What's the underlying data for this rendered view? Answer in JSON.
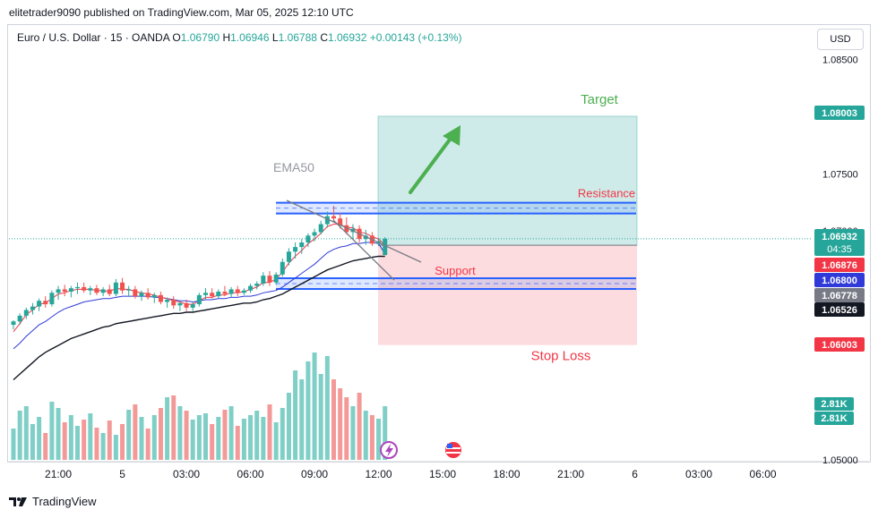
{
  "header": {
    "publish_line": "elitetrader9090 published on TradingView.com, Mar 05, 2025 12:10 UTC"
  },
  "legend": {
    "symbol": "Euro / U.S. Dollar · 15 · OANDA",
    "o_label": "O",
    "o": "1.06790",
    "h_label": "H",
    "h": "1.06946",
    "l_label": "L",
    "l": "1.06788",
    "c_label": "C",
    "c": "1.06932",
    "change": "+0.00143 (+0.13%)"
  },
  "currency_button": "USD",
  "footer": {
    "brand": "TradingView"
  },
  "colors": {
    "up": "#26a69a",
    "down": "#ef5350",
    "target_zone": "#26a69a",
    "stop_zone": "#f7525f",
    "level_line": "#2962ff",
    "ema_fast": "#f23645",
    "ema_mid": "#2f3ad8",
    "ema_slow": "#131722"
  },
  "chart_data": {
    "type": "candlestick",
    "symbol": "EURUSD",
    "timeframe": "15",
    "ylim": [
      1.05,
      1.0855
    ],
    "y_ticks": [
      "1.08500",
      "1.07500",
      "1.07000",
      "1.05000"
    ],
    "x_ticks": [
      "21:00",
      "5",
      "03:00",
      "06:00",
      "09:00",
      "12:00",
      "15:00",
      "18:00",
      "21:00",
      "6",
      "03:00",
      "06:00"
    ],
    "x_tick_bars": [
      7,
      17,
      27,
      37,
      47,
      57,
      67,
      77,
      87,
      97,
      107,
      117
    ],
    "bars_visible": 59,
    "candles": [
      [
        1.0618,
        1.0622,
        1.0614,
        1.0621
      ],
      [
        1.0621,
        1.0628,
        1.0618,
        1.0626
      ],
      [
        1.0626,
        1.0633,
        1.0623,
        1.0631
      ],
      [
        1.0631,
        1.0637,
        1.0627,
        1.0634
      ],
      [
        1.0634,
        1.0641,
        1.063,
        1.0639
      ],
      [
        1.0639,
        1.0643,
        1.0633,
        1.0636
      ],
      [
        1.0636,
        1.0648,
        1.0634,
        1.0646
      ],
      [
        1.0646,
        1.0652,
        1.064,
        1.0649
      ],
      [
        1.0649,
        1.0653,
        1.0643,
        1.0647
      ],
      [
        1.0647,
        1.0652,
        1.0642,
        1.065
      ],
      [
        1.065,
        1.0655,
        1.0645,
        1.0651
      ],
      [
        1.0651,
        1.0655,
        1.0646,
        1.0648
      ],
      [
        1.0648,
        1.0652,
        1.0644,
        1.065
      ],
      [
        1.065,
        1.0653,
        1.0644,
        1.0646
      ],
      [
        1.0646,
        1.0651,
        1.0643,
        1.0649
      ],
      [
        1.0649,
        1.0653,
        1.0643,
        1.0645
      ],
      [
        1.0645,
        1.0658,
        1.0643,
        1.0655
      ],
      [
        1.0655,
        1.0659,
        1.0645,
        1.0648
      ],
      [
        1.0648,
        1.0652,
        1.0643,
        1.0649
      ],
      [
        1.0649,
        1.0652,
        1.0641,
        1.0643
      ],
      [
        1.0643,
        1.0648,
        1.0639,
        1.0646
      ],
      [
        1.0646,
        1.065,
        1.064,
        1.0642
      ],
      [
        1.0642,
        1.0646,
        1.0637,
        1.0644
      ],
      [
        1.0644,
        1.0647,
        1.0636,
        1.0638
      ],
      [
        1.0638,
        1.0642,
        1.0633,
        1.064
      ],
      [
        1.064,
        1.0643,
        1.0632,
        1.0635
      ],
      [
        1.0635,
        1.0639,
        1.063,
        1.0637
      ],
      [
        1.0637,
        1.064,
        1.063,
        1.0633
      ],
      [
        1.0633,
        1.0638,
        1.063,
        1.0636
      ],
      [
        1.0636,
        1.0646,
        1.0634,
        1.0644
      ],
      [
        1.0644,
        1.065,
        1.064,
        1.0646
      ],
      [
        1.0646,
        1.065,
        1.0641,
        1.0643
      ],
      [
        1.0643,
        1.0649,
        1.0641,
        1.0647
      ],
      [
        1.0647,
        1.0652,
        1.0643,
        1.0645
      ],
      [
        1.0645,
        1.0651,
        1.0642,
        1.0649
      ],
      [
        1.0649,
        1.0652,
        1.0643,
        1.0646
      ],
      [
        1.0646,
        1.065,
        1.0644,
        1.0648
      ],
      [
        1.0648,
        1.0654,
        1.0646,
        1.0652
      ],
      [
        1.0652,
        1.0656,
        1.0649,
        1.0654
      ],
      [
        1.0654,
        1.0664,
        1.0652,
        1.0661
      ],
      [
        1.0661,
        1.0665,
        1.0652,
        1.0655
      ],
      [
        1.0655,
        1.0664,
        1.0653,
        1.0662
      ],
      [
        1.0662,
        1.0676,
        1.066,
        1.0673
      ],
      [
        1.0673,
        1.0685,
        1.067,
        1.0682
      ],
      [
        1.0682,
        1.069,
        1.0676,
        1.0686
      ],
      [
        1.0686,
        1.0693,
        1.068,
        1.069
      ],
      [
        1.069,
        1.0698,
        1.0686,
        1.0696
      ],
      [
        1.0696,
        1.0702,
        1.0691,
        1.0699
      ],
      [
        1.0699,
        1.0709,
        1.0697,
        1.0706
      ],
      [
        1.0706,
        1.0717,
        1.0703,
        1.0713
      ],
      [
        1.0713,
        1.0722,
        1.0708,
        1.0711
      ],
      [
        1.0711,
        1.0716,
        1.0702,
        1.0705
      ],
      [
        1.0705,
        1.0712,
        1.0697,
        1.0699
      ],
      [
        1.0699,
        1.0706,
        1.0693,
        1.0702
      ],
      [
        1.0702,
        1.0705,
        1.069,
        1.0693
      ],
      [
        1.0693,
        1.0701,
        1.0688,
        1.0696
      ],
      [
        1.0696,
        1.0699,
        1.0687,
        1.0689
      ],
      [
        1.0689,
        1.0694,
        1.0687,
        1.0691
      ],
      [
        1.0679,
        1.06946,
        1.06788,
        1.06932
      ]
    ],
    "volume": [
      35,
      55,
      60,
      40,
      48,
      30,
      65,
      58,
      42,
      50,
      38,
      45,
      52,
      36,
      30,
      44,
      28,
      40,
      56,
      62,
      48,
      35,
      50,
      58,
      70,
      72,
      60,
      55,
      45,
      50,
      52,
      40,
      48,
      56,
      60,
      38,
      46,
      50,
      55,
      48,
      62,
      42,
      58,
      75,
      100,
      90,
      110,
      120,
      96,
      116,
      90,
      80,
      70,
      60,
      75,
      55,
      50,
      46,
      60
    ],
    "volume_up": [
      true,
      true,
      true,
      true,
      true,
      false,
      true,
      true,
      false,
      true,
      true,
      false,
      true,
      false,
      true,
      false,
      true,
      false,
      true,
      false,
      true,
      false,
      true,
      false,
      true,
      false,
      true,
      false,
      true,
      true,
      true,
      false,
      true,
      false,
      true,
      false,
      true,
      true,
      true,
      true,
      false,
      true,
      true,
      true,
      true,
      true,
      true,
      true,
      true,
      true,
      false,
      false,
      false,
      true,
      false,
      true,
      false,
      true,
      true
    ],
    "ema_fast": [
      1.0612,
      1.0619,
      1.0627,
      1.0631,
      1.0636,
      1.0637,
      1.0641,
      1.0645,
      1.0646,
      1.0648,
      1.0649,
      1.0649,
      1.0649,
      1.0648,
      1.0648,
      1.0647,
      1.065,
      1.0649,
      1.0649,
      1.0647,
      1.0646,
      1.0645,
      1.0644,
      1.0642,
      1.0641,
      1.0639,
      1.0638,
      1.0636,
      1.0636,
      1.0639,
      1.0642,
      1.0642,
      1.0644,
      1.0644,
      1.0646,
      1.0646,
      1.0647,
      1.0649,
      1.0651,
      1.0655,
      1.0655,
      1.0658,
      1.0664,
      1.0672,
      1.0678,
      1.0683,
      1.0689,
      1.0693,
      1.0698,
      1.0704,
      1.0706,
      1.0706,
      1.0703,
      1.0703,
      1.0699,
      1.0698,
      1.0695,
      1.0693,
      1.06876
    ],
    "ema_mid": [
      1.0597,
      1.0602,
      1.0608,
      1.0613,
      1.0618,
      1.0621,
      1.0625,
      1.0629,
      1.0632,
      1.0634,
      1.0636,
      1.0638,
      1.0639,
      1.064,
      1.0641,
      1.0641,
      1.0642,
      1.0643,
      1.0643,
      1.0643,
      1.0643,
      1.0643,
      1.0642,
      1.0642,
      1.0641,
      1.064,
      1.0639,
      1.0639,
      1.0638,
      1.0639,
      1.064,
      1.064,
      1.0641,
      1.0641,
      1.0642,
      1.0642,
      1.0643,
      1.0643,
      1.0644,
      1.0646,
      1.0647,
      1.0648,
      1.0651,
      1.0655,
      1.0659,
      1.0663,
      1.0667,
      1.0671,
      1.0676,
      1.0681,
      1.0684,
      1.0686,
      1.0687,
      1.0689,
      1.0689,
      1.069,
      1.069,
      1.0689,
      1.068
    ],
    "ema50": [
      1.057,
      1.0575,
      1.058,
      1.0585,
      1.059,
      1.0594,
      1.0597,
      1.06,
      1.0603,
      1.0606,
      1.0608,
      1.061,
      1.0612,
      1.0614,
      1.0616,
      1.0617,
      1.0619,
      1.062,
      1.0621,
      1.0622,
      1.0623,
      1.0624,
      1.0625,
      1.0626,
      1.0627,
      1.0628,
      1.0628,
      1.0629,
      1.0629,
      1.063,
      1.0631,
      1.0632,
      1.0633,
      1.0634,
      1.0635,
      1.0636,
      1.0637,
      1.0637,
      1.0638,
      1.064,
      1.0641,
      1.0643,
      1.0645,
      1.0648,
      1.0651,
      1.0654,
      1.0657,
      1.066,
      1.0663,
      1.0666,
      1.0668,
      1.067,
      1.0672,
      1.0674,
      1.0675,
      1.0676,
      1.0677,
      1.0678,
      1.06778
    ],
    "levels": {
      "resistance": 1.072,
      "support": 1.0654,
      "target": 1.08003,
      "stop_loss": 1.06003,
      "entry": 1.06876
    },
    "price_tags": [
      {
        "label": "1.08003",
        "value": 1.08003,
        "color": "#26a69a"
      },
      {
        "label": "1.06932",
        "value": 1.06932,
        "color": "#26a69a",
        "sub": "04:35"
      },
      {
        "label": "1.06876",
        "value": 1.06876,
        "color": "#f23645"
      },
      {
        "label": "1.06800",
        "value": 1.068,
        "color": "#2f3ad8"
      },
      {
        "label": "1.06778",
        "value": 1.06778,
        "color": "#787b86"
      },
      {
        "label": "1.06526",
        "value": 1.06526,
        "color": "#131722"
      },
      {
        "label": "1.06003",
        "value": 1.06003,
        "color": "#f23645"
      }
    ],
    "volume_tags": [
      "2.81K",
      "2.81K"
    ],
    "annotations": {
      "target": "Target",
      "resistance": "Resistance",
      "support": "Support",
      "stop_loss": "Stop Loss",
      "ema50": "EMA50"
    }
  }
}
